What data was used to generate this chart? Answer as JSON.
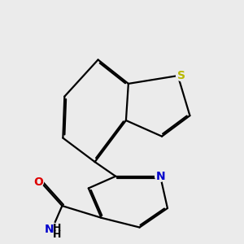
{
  "bg_color": "#ebebeb",
  "bond_color": "#000000",
  "S_color": "#b8b800",
  "N_color": "#0000cc",
  "O_color": "#dd0000",
  "NH2_N_color": "#0000cc",
  "line_width": 1.6,
  "figsize": [
    3.0,
    3.0
  ],
  "dpi": 100,
  "xlim": [
    0,
    10
  ],
  "ylim": [
    0,
    10
  ]
}
